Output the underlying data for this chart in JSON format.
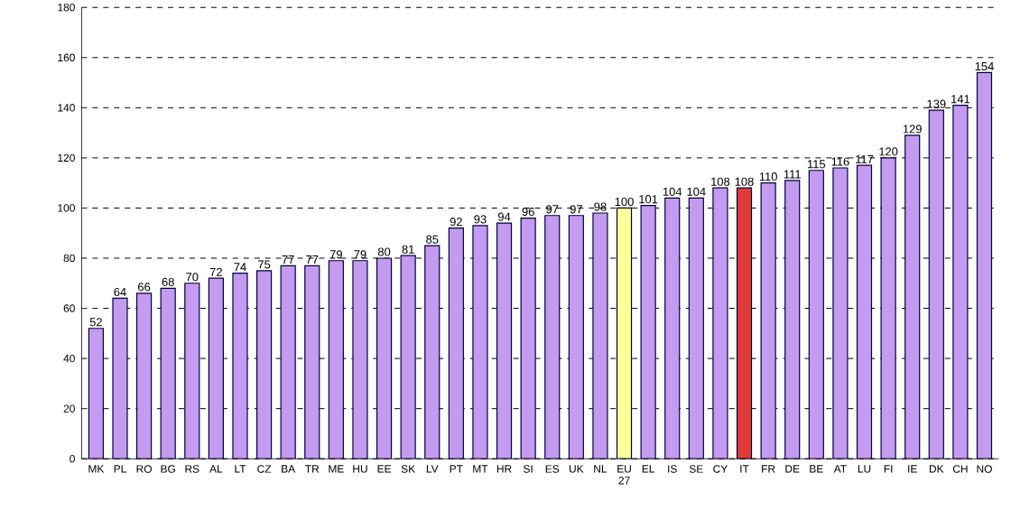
{
  "chart_data": {
    "type": "bar",
    "categories": [
      "MK",
      "PL",
      "RO",
      "BG",
      "RS",
      "AL",
      "LT",
      "CZ",
      "BA",
      "TR",
      "ME",
      "HU",
      "EE",
      "SK",
      "LV",
      "PT",
      "MT",
      "HR",
      "SI",
      "ES",
      "UK",
      "NL",
      "EU 27",
      "EL",
      "IS",
      "SE",
      "CY",
      "IT",
      "FR",
      "DE",
      "BE",
      "AT",
      "LU",
      "FI",
      "IE",
      "DK",
      "CH",
      "NO"
    ],
    "values": [
      52,
      64,
      66,
      68,
      70,
      72,
      74,
      75,
      77,
      77,
      79,
      79,
      80,
      81,
      85,
      92,
      93,
      94,
      96,
      97,
      97,
      98,
      100,
      101,
      104,
      104,
      108,
      108,
      110,
      111,
      115,
      116,
      117,
      120,
      129,
      139,
      141,
      154
    ],
    "colors": [
      "#c39bf0",
      "#c39bf0",
      "#c39bf0",
      "#c39bf0",
      "#c39bf0",
      "#c39bf0",
      "#c39bf0",
      "#c39bf0",
      "#c39bf0",
      "#c39bf0",
      "#c39bf0",
      "#c39bf0",
      "#c39bf0",
      "#c39bf0",
      "#c39bf0",
      "#c39bf0",
      "#c39bf0",
      "#c39bf0",
      "#c39bf0",
      "#c39bf0",
      "#c39bf0",
      "#c39bf0",
      "#ffff99",
      "#c39bf0",
      "#c39bf0",
      "#c39bf0",
      "#c39bf0",
      "#e03a3a",
      "#c39bf0",
      "#c39bf0",
      "#c39bf0",
      "#c39bf0",
      "#c39bf0",
      "#c39bf0",
      "#c39bf0",
      "#c39bf0",
      "#c39bf0",
      "#c39bf0"
    ],
    "ylim": [
      0,
      180
    ],
    "yticks": [
      0,
      20,
      40,
      60,
      80,
      100,
      120,
      140,
      160,
      180
    ],
    "grid": "y",
    "data_labels": true
  }
}
